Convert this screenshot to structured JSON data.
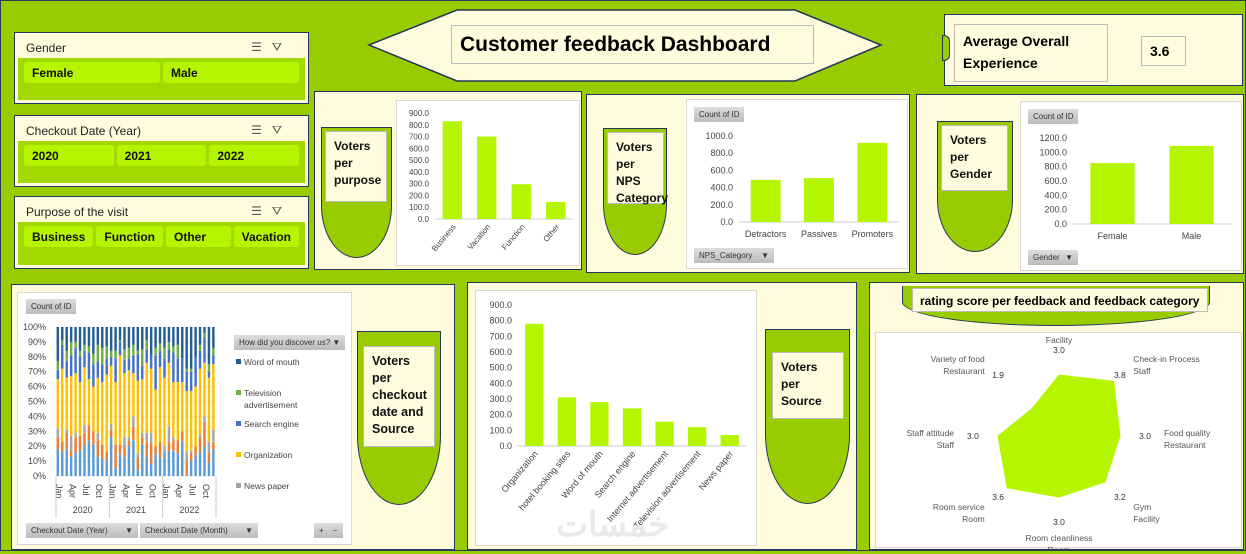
{
  "title": "Customer feedback Dashboard",
  "kpi": {
    "label": "Average Overall Experience",
    "value": "3.6"
  },
  "slicers": [
    {
      "title": "Gender",
      "items": [
        "Female",
        "Male"
      ]
    },
    {
      "title": "Checkout Date (Year)",
      "items": [
        "2020",
        "2021",
        "2022"
      ]
    },
    {
      "title": "Purpose of the visit",
      "items": [
        "Business",
        "Function",
        "Other",
        "Vacation"
      ]
    }
  ],
  "icons": {
    "multi_select": "multi-select-icon",
    "clear_filter": "clear-filter-icon"
  },
  "colors": {
    "background": "#99cc00",
    "bar": "#b5f500",
    "panel": "#fffbdd",
    "border": "#26365a"
  },
  "purpose_panel": {
    "label": "Voters per purpose"
  },
  "nps_panel": {
    "label": "Voters per NPS Category",
    "field_tag": "Count of ID",
    "filter": "NPS_Category"
  },
  "gender_panel": {
    "label": "Voters per Gender",
    "field_tag": "Count of ID",
    "filter": "Gender"
  },
  "checkout_panel": {
    "label": "Voters per checkout date and Source",
    "field_tag": "Count of ID",
    "legend_title": "How did you discover us?",
    "filter_year": "Checkout Date (Year)",
    "filter_month": "Checkout Date (Month)",
    "expand": "+",
    "collapse": "−"
  },
  "source_panel": {
    "label": "Voters per Source"
  },
  "rating_panel": {
    "label": "rating score per feedback and feedback category"
  },
  "watermark": "خمسات",
  "chart_data": [
    {
      "type": "bar",
      "id": "purpose",
      "categories": [
        "Business",
        "Vacation",
        "Function",
        "Other"
      ],
      "values": [
        830,
        700,
        295,
        145
      ],
      "ylim": [
        0,
        900
      ],
      "yticks": [
        0,
        100,
        200,
        300,
        400,
        500,
        600,
        700,
        800,
        900
      ],
      "grid": false
    },
    {
      "type": "bar",
      "id": "nps",
      "categories": [
        "Detractors",
        "Passives",
        "Promoters"
      ],
      "values": [
        490,
        510,
        920
      ],
      "ylim": [
        0,
        1000
      ],
      "yticks": [
        0,
        200,
        400,
        600,
        800,
        1000
      ],
      "grid": false
    },
    {
      "type": "bar",
      "id": "gender",
      "categories": [
        "Female",
        "Male"
      ],
      "values": [
        850,
        1090
      ],
      "ylim": [
        0,
        1200
      ],
      "yticks": [
        0,
        200,
        400,
        600,
        800,
        1000,
        1200
      ],
      "grid": false
    },
    {
      "type": "bar",
      "id": "source",
      "categories": [
        "Organization",
        "hotel booking sites",
        "Word of mouth",
        "Search engine",
        "Internet advertisement",
        "Television advertisement",
        "News paper"
      ],
      "values": [
        780,
        310,
        280,
        240,
        155,
        120,
        70
      ],
      "ylim": [
        0,
        900
      ],
      "yticks": [
        0,
        100,
        200,
        300,
        400,
        500,
        600,
        700,
        800,
        900
      ],
      "grid": false
    },
    {
      "type": "bar",
      "stacked": "percent",
      "id": "checkout",
      "years": [
        "2020",
        "2021",
        "2022"
      ],
      "month_labels": [
        "Jan",
        "Apr",
        "Jul",
        "Oct"
      ],
      "yticks": [
        "0%",
        "10%",
        "20%",
        "30%",
        "40%",
        "50%",
        "60%",
        "70%",
        "80%",
        "90%",
        "100%"
      ],
      "legend": "right",
      "series": [
        {
          "color": "#5b9bd5"
        },
        {
          "color": "#ed7d31"
        },
        {
          "name": "News paper",
          "color": "#a5a5a5"
        },
        {
          "name": "Organization",
          "color": "#ffc000"
        },
        {
          "name": "Search engine",
          "color": "#4472c4"
        },
        {
          "name": "Television advertisement",
          "color": "#70ad47"
        },
        {
          "name": "Word of mouth",
          "color": "#255e91"
        }
      ],
      "values": [
        [
          18,
          8,
          6,
          33,
          6,
          6,
          23
        ],
        [
          16,
          7,
          0,
          49,
          16,
          3,
          9
        ],
        [
          18,
          11,
          2,
          35,
          11,
          7,
          16
        ],
        [
          13,
          4,
          10,
          40,
          14,
          9,
          10
        ],
        [
          16,
          10,
          3,
          40,
          17,
          4,
          10
        ],
        [
          17,
          10,
          0,
          36,
          17,
          4,
          16
        ],
        [
          20,
          9,
          5,
          39,
          11,
          4,
          12
        ],
        [
          24,
          10,
          0,
          31,
          18,
          4,
          13
        ],
        [
          21,
          9,
          0,
          30,
          15,
          7,
          18
        ],
        [
          13,
          11,
          5,
          37,
          11,
          11,
          12
        ],
        [
          12,
          9,
          0,
          42,
          12,
          11,
          14
        ],
        [
          10,
          6,
          0,
          52,
          11,
          8,
          13
        ],
        [
          26,
          5,
          4,
          39,
          6,
          4,
          16
        ],
        [
          5,
          16,
          0,
          42,
          16,
          5,
          16
        ],
        [
          15,
          6,
          0,
          60,
          9,
          1,
          9
        ],
        [
          13,
          7,
          6,
          43,
          9,
          7,
          15
        ],
        [
          20,
          4,
          2,
          45,
          8,
          7,
          14
        ],
        [
          24,
          9,
          7,
          29,
          12,
          7,
          12
        ],
        [
          4,
          8,
          3,
          49,
          18,
          2,
          16
        ],
        [
          21,
          5,
          3,
          36,
          9,
          11,
          15
        ],
        [
          13,
          10,
          6,
          47,
          9,
          6,
          9
        ],
        [
          8,
          14,
          7,
          43,
          9,
          0,
          19
        ],
        [
          15,
          5,
          0,
          38,
          23,
          5,
          14
        ],
        [
          12,
          11,
          0,
          50,
          11,
          5,
          11
        ],
        [
          16,
          0,
          4,
          46,
          13,
          7,
          14
        ],
        [
          17,
          6,
          10,
          43,
          9,
          5,
          10
        ],
        [
          17,
          7,
          2,
          37,
          20,
          4,
          13
        ],
        [
          15,
          9,
          0,
          39,
          16,
          9,
          12
        ],
        [
          23,
          7,
          0,
          33,
          16,
          0,
          21
        ],
        [
          0,
          10,
          6,
          41,
          13,
          2,
          28
        ],
        [
          10,
          5,
          2,
          40,
          13,
          2,
          28
        ],
        [
          14,
          6,
          0,
          40,
          20,
          0,
          20
        ],
        [
          16,
          10,
          2,
          44,
          12,
          4,
          12
        ],
        [
          20,
          16,
          4,
          36,
          17,
          3,
          4
        ],
        [
          9,
          7,
          7,
          43,
          4,
          5,
          25
        ],
        [
          18,
          5,
          8,
          44,
          6,
          5,
          14
        ]
      ]
    },
    {
      "type": "radar",
      "id": "rating",
      "categories": [
        "Broadband & TV Facility",
        "Check-in Process Staff",
        "Food quality Restaurant",
        "Gym Facility",
        "Room cleanliness Room",
        "Room service Room",
        "Staff attitude Staff",
        "Variety of food Restaurant"
      ],
      "value_labels": [
        "3.0",
        "3.8",
        "3.0",
        "3.2",
        "3.0",
        "3.6",
        "3.0",
        "1.9"
      ],
      "values": [
        3.0,
        3.8,
        3.0,
        3.2,
        3.0,
        3.6,
        3.0,
        1.9
      ],
      "rmax": 4
    }
  ]
}
